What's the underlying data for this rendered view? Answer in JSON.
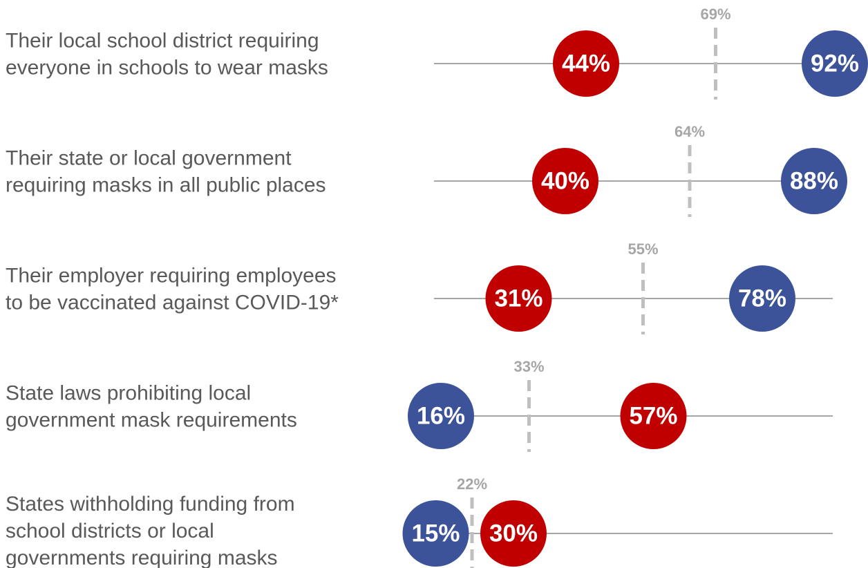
{
  "chart_data": {
    "type": "dot",
    "categories": [
      [
        "Their local school district requiring",
        "everyone in schools to wear masks"
      ],
      [
        "Their state or local government",
        "requiring masks in all public places"
      ],
      [
        "Their employer requiring employees",
        "to be vaccinated against COVID-19*"
      ],
      [
        "State laws prohibiting local",
        "government mask requirements"
      ],
      [
        "States withholding funding from",
        "school districts or local",
        "governments requiring masks"
      ]
    ],
    "series": [
      {
        "style": "marker",
        "color": "#3c539a",
        "values": [
          92,
          88,
          78,
          16,
          15
        ],
        "value_labels": [
          "92%",
          "88%",
          "78%",
          "16%",
          "15%"
        ]
      },
      {
        "style": "marker",
        "color": "#c00000",
        "values": [
          44,
          40,
          31,
          57,
          30
        ],
        "value_labels": [
          "44%",
          "40%",
          "31%",
          "57%",
          "30%"
        ]
      },
      {
        "style": "dashed",
        "color": "#bfbfbf",
        "values": [
          69,
          64,
          55,
          33,
          22
        ],
        "value_labels": [
          "69%",
          "64%",
          "55%",
          "33%",
          "22%"
        ]
      }
    ]
  }
}
